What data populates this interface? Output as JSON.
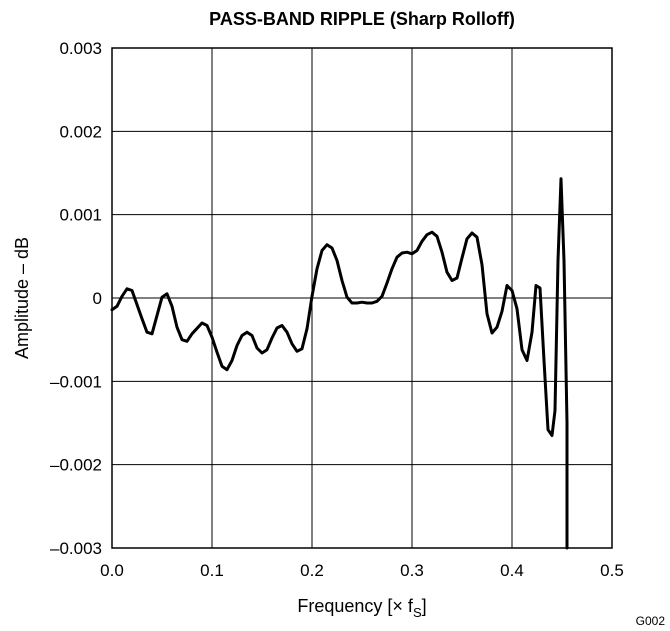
{
  "chart_data": {
    "type": "line",
    "title": "PASS-BAND RIPPLE (Sharp Rolloff)",
    "xlabel": "Frequency [× f",
    "xlabel_sub": "S",
    "xlabel_end": "]",
    "ylabel": "Amplitude – dB",
    "figure_id": "G002",
    "xlim": [
      0.0,
      0.5
    ],
    "ylim": [
      -0.003,
      0.003
    ],
    "grid": true,
    "x_ticks": [
      "0.0",
      "0.1",
      "0.2",
      "0.3",
      "0.4",
      "0.5"
    ],
    "y_ticks": [
      "–0.003",
      "–0.002",
      "–0.001",
      "0",
      "0.001",
      "0.002",
      "0.003"
    ],
    "x_tick_values": [
      0.0,
      0.1,
      0.2,
      0.3,
      0.4,
      0.5
    ],
    "y_tick_values": [
      -0.003,
      -0.002,
      -0.001,
      0,
      0.001,
      0.002,
      0.003
    ],
    "series": [
      {
        "x": [
          0.0,
          0.005,
          0.01,
          0.015,
          0.02,
          0.03,
          0.035,
          0.04,
          0.05,
          0.055,
          0.06,
          0.065,
          0.07,
          0.075,
          0.08,
          0.09,
          0.095,
          0.1,
          0.105,
          0.11,
          0.115,
          0.12,
          0.125,
          0.13,
          0.135,
          0.14,
          0.145,
          0.15,
          0.155,
          0.16,
          0.165,
          0.17,
          0.175,
          0.18,
          0.185,
          0.19,
          0.195,
          0.2,
          0.205,
          0.21,
          0.215,
          0.22,
          0.225,
          0.23,
          0.235,
          0.24,
          0.245,
          0.25,
          0.255,
          0.26,
          0.265,
          0.27,
          0.275,
          0.28,
          0.285,
          0.29,
          0.295,
          0.3,
          0.305,
          0.31,
          0.315,
          0.32,
          0.325,
          0.33,
          0.335,
          0.34,
          0.345,
          0.35,
          0.355,
          0.36,
          0.365,
          0.37,
          0.375,
          0.38,
          0.385,
          0.39,
          0.395,
          0.4,
          0.405,
          0.41,
          0.415,
          0.42,
          0.424,
          0.428,
          0.432,
          0.436,
          0.44,
          0.443,
          0.446,
          0.449,
          0.452,
          0.455,
          0.455
        ],
        "y": [
          -0.00014,
          -0.0001,
          2e-05,
          0.00011,
          9e-05,
          -0.00025,
          -0.00041,
          -0.00043,
          1e-05,
          5e-05,
          -0.0001,
          -0.00035,
          -0.0005,
          -0.00052,
          -0.00043,
          -0.0003,
          -0.00033,
          -0.00047,
          -0.00065,
          -0.00082,
          -0.00086,
          -0.00075,
          -0.00057,
          -0.00045,
          -0.00041,
          -0.00045,
          -0.0006,
          -0.00066,
          -0.00062,
          -0.00048,
          -0.00036,
          -0.00033,
          -0.00041,
          -0.00055,
          -0.00064,
          -0.00061,
          -0.00037,
          2e-05,
          0.00035,
          0.00057,
          0.00064,
          0.0006,
          0.00045,
          0.00021,
          1e-05,
          -6e-05,
          -6e-05,
          -5e-05,
          -6e-05,
          -6e-05,
          -4e-05,
          2e-05,
          0.00018,
          0.00035,
          0.00049,
          0.00054,
          0.00055,
          0.00053,
          0.00057,
          0.00068,
          0.00076,
          0.00079,
          0.00074,
          0.00055,
          0.00031,
          0.00021,
          0.00024,
          0.00048,
          0.00071,
          0.00078,
          0.00073,
          0.0004,
          -0.00019,
          -0.00042,
          -0.00035,
          -0.00016,
          0.00015,
          9e-05,
          -0.00013,
          -0.00062,
          -0.00075,
          -0.00041,
          0.00015,
          0.00012,
          -0.00075,
          -0.00158,
          -0.00165,
          -0.00135,
          0.00045,
          0.00143,
          0.00045,
          -0.0015,
          -0.003
        ]
      }
    ]
  }
}
